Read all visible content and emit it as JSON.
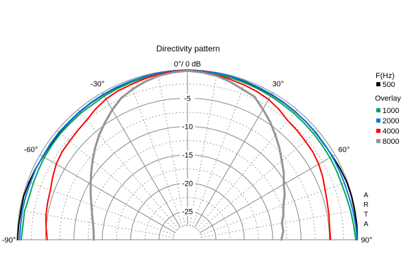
{
  "title": "Directivity pattern",
  "plot": {
    "apex_label": "0°/ 0 dB",
    "angle_labels": [
      {
        "angle": -30,
        "label": "-30°"
      },
      {
        "angle": 30,
        "label": "30°"
      },
      {
        "angle": -60,
        "label": "-60°"
      },
      {
        "angle": 60,
        "label": "60°"
      },
      {
        "angle": -90,
        "label": "-90°"
      },
      {
        "angle": 90,
        "label": "90°"
      }
    ]
  },
  "legend": {
    "freq_header": "F(Hz)",
    "main": {
      "label": "500",
      "color": "#000000"
    },
    "overlay_header": "Overlay",
    "overlays": [
      {
        "label": "1000",
        "color": "#00A651"
      },
      {
        "label": "2000",
        "color": "#0078E8"
      },
      {
        "label": "4000",
        "color": "#FF0000"
      },
      {
        "label": "8000",
        "color": "#949494"
      }
    ]
  },
  "watermark": "ARTA",
  "grid_colors": {
    "solid": "#858585",
    "dashed": "#9E9E9E",
    "baseline": "#808080"
  },
  "chart_data": {
    "type": "line",
    "subtype": "polar-directivity-semicircle",
    "title": "Directivity pattern",
    "db_axis": {
      "min": -30,
      "max": 0,
      "ring_step_db": 5,
      "subring_step_db": 2.5,
      "ticks": [
        {
          "label": "-5",
          "db": -5
        },
        {
          "label": "-10",
          "db": -10
        },
        {
          "label": "-15",
          "db": -15
        },
        {
          "label": "-20",
          "db": -20
        },
        {
          "label": "-25",
          "db": -25
        }
      ]
    },
    "angle_axis": {
      "min_deg": -90,
      "max_deg": 90,
      "solid_line_step_deg": 30,
      "dashed_line_step_deg": 10,
      "labeled_deg": [
        -90,
        -60,
        -30,
        0,
        30,
        60,
        90
      ]
    },
    "angles_deg": [
      -90,
      -85,
      -80,
      -75,
      -70,
      -65,
      -60,
      -55,
      -50,
      -45,
      -40,
      -35,
      -30,
      -25,
      -20,
      -15,
      -10,
      -5,
      0,
      5,
      10,
      15,
      20,
      25,
      30,
      35,
      40,
      45,
      50,
      55,
      60,
      65,
      70,
      75,
      80,
      85,
      90
    ],
    "series": [
      {
        "name": "500",
        "freq_hz": 500,
        "color": "#000000",
        "width": 2,
        "db": [
          -0.05,
          -0.15,
          -0.2,
          -0.15,
          -0.3,
          -0.45,
          -0.6,
          -0.6,
          -0.55,
          -0.55,
          -0.5,
          -0.45,
          -0.4,
          -0.35,
          -0.3,
          -0.25,
          -0.15,
          -0.1,
          -0.05,
          -0.1,
          -0.15,
          -0.2,
          -0.3,
          -0.35,
          -0.4,
          -0.45,
          -0.5,
          -0.5,
          -0.55,
          -0.6,
          -0.5,
          -0.3,
          -0.15,
          -0.1,
          -0.1,
          -0.05,
          -0.1
        ]
      },
      {
        "name": "1000",
        "freq_hz": 1000,
        "color": "#00A651",
        "width": 2,
        "db": [
          -0.7,
          -0.9,
          -0.85,
          -1.1,
          -1.05,
          -1.0,
          -0.9,
          -0.85,
          -0.8,
          -0.85,
          -0.8,
          -0.85,
          -0.7,
          -0.6,
          -0.5,
          -0.4,
          -0.3,
          -0.15,
          -0.1,
          -0.2,
          -0.3,
          -0.4,
          -0.5,
          -0.6,
          -0.7,
          -0.8,
          -0.85,
          -0.9,
          -0.95,
          -1.0,
          -1.0,
          -1.05,
          -1.1,
          -1.0,
          -0.8,
          -0.6,
          -0.35
        ]
      },
      {
        "name": "2000",
        "freq_hz": 2000,
        "color": "#0078E8",
        "width": 2,
        "db": [
          -0.4,
          -0.5,
          -0.45,
          -0.5,
          -0.55,
          -0.5,
          -0.55,
          -0.5,
          -0.45,
          -0.5,
          -0.45,
          -0.4,
          -0.35,
          -0.3,
          -0.25,
          -0.2,
          -0.1,
          -0.05,
          0,
          -0.05,
          -0.1,
          -0.15,
          -0.2,
          -0.3,
          -0.35,
          -0.4,
          -0.45,
          -0.5,
          -0.5,
          -0.55,
          -0.55,
          -0.6,
          -0.6,
          -0.55,
          -0.4,
          -0.25,
          -0.1
        ]
      },
      {
        "name": "4000",
        "freq_hz": 4000,
        "color": "#FF0000",
        "width": 2,
        "db": [
          -5.3,
          -5.0,
          -4.7,
          -4.5,
          -4.3,
          -3.8,
          -3.3,
          -3.0,
          -2.9,
          -2.7,
          -2.4,
          -1.8,
          -1.3,
          -1.0,
          -0.85,
          -0.6,
          -0.35,
          -0.15,
          -0.05,
          -0.2,
          -0.45,
          -0.7,
          -0.9,
          -1.1,
          -1.4,
          -1.9,
          -2.5,
          -2.7,
          -2.9,
          -3.0,
          -3.3,
          -3.7,
          -4.2,
          -4.5,
          -4.7,
          -4.85,
          -4.8
        ]
      },
      {
        "name": "8000",
        "freq_hz": 8000,
        "color": "#949494",
        "width": 3,
        "db": [
          -13.5,
          -13.4,
          -13.1,
          -12.6,
          -12.0,
          -11.2,
          -10.3,
          -9.3,
          -8.2,
          -7.0,
          -5.8,
          -4.7,
          -3.5,
          -2.4,
          -1.7,
          -1.1,
          -0.6,
          -0.35,
          -0.15,
          -0.35,
          -0.6,
          -1.1,
          -1.7,
          -2.1,
          -3.4,
          -4.6,
          -5.9,
          -7.1,
          -8.3,
          -9.3,
          -10.4,
          -11.1,
          -12.0,
          -12.5,
          -13.1,
          -13.05,
          -13.45
        ]
      }
    ]
  }
}
